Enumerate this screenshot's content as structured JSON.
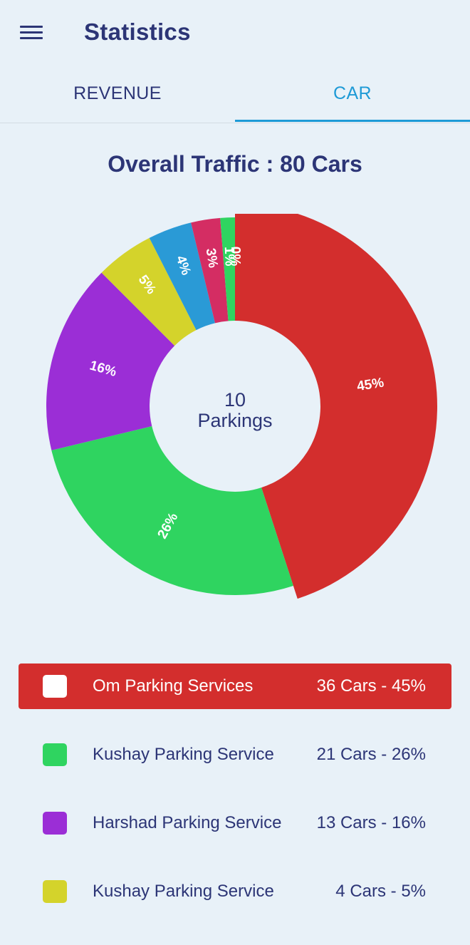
{
  "header": {
    "title": "Statistics",
    "menu_icon": "hamburger-menu-icon"
  },
  "tabs": [
    {
      "label": "REVENUE",
      "active": false
    },
    {
      "label": "CAR",
      "active": true
    }
  ],
  "chart_title": "Overall Traffic : 80 Cars",
  "center": {
    "count": "10",
    "label": "Parkings"
  },
  "chart_data": {
    "type": "pie",
    "title": "Overall Traffic : 80 Cars",
    "donut": true,
    "slices": [
      {
        "label": "Om Parking Services",
        "cars": 36,
        "percent": 45,
        "label_text": "45%",
        "color": "#d32e2d"
      },
      {
        "label": "Kushay Parking Service",
        "cars": 21,
        "percent": 26,
        "label_text": "26%",
        "color": "#2fd460"
      },
      {
        "label": "Harshad Parking Service",
        "cars": 13,
        "percent": 16,
        "label_text": "16%",
        "color": "#9b2ed6"
      },
      {
        "label": "Kushay Parking Service",
        "cars": 4,
        "percent": 5,
        "label_text": "5%",
        "color": "#d4d32b"
      },
      {
        "cars": 3,
        "percent": 4,
        "label_text": "4%",
        "color": "#2a9ad6"
      },
      {
        "cars": 2,
        "percent": 3,
        "label_text": "3%",
        "color": "#d42d63"
      },
      {
        "cars": 1,
        "percent": 1,
        "label_text": "1%",
        "color": "#2fd460"
      },
      {
        "cars": 0,
        "percent": 0,
        "label_text": "0%",
        "color": "#2fd460"
      }
    ]
  },
  "legend": [
    {
      "name": "Om Parking Services",
      "value": "36 Cars - 45%",
      "color": "#d32e2d",
      "active": true
    },
    {
      "name": "Kushay Parking Service",
      "value": "21 Cars - 26%",
      "color": "#2fd460",
      "active": false
    },
    {
      "name": "Harshad Parking Service",
      "value": "13 Cars - 16%",
      "color": "#9b2ed6",
      "active": false
    },
    {
      "name": "Kushay Parking Service",
      "value": "4 Cars - 5%",
      "color": "#d4d32b",
      "active": false
    }
  ]
}
